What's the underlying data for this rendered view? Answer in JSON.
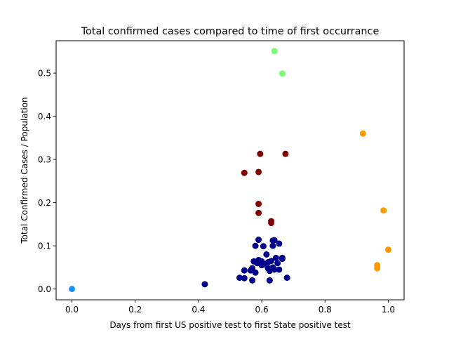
{
  "chart_data": {
    "type": "scatter",
    "title": "Total confirmed cases compared to time of first occurrance",
    "xlabel": "Days from first US positive test to first State positive test",
    "ylabel": "Total Confirmed Cases / Population",
    "xlim": [
      -0.05,
      1.05
    ],
    "ylim": [
      -0.025,
      0.575
    ],
    "x_ticks": [
      0.0,
      0.2,
      0.4,
      0.6,
      0.8,
      1.0
    ],
    "x_tick_labels": [
      "0.0",
      "0.2",
      "0.4",
      "0.6",
      "0.8",
      "1.0"
    ],
    "y_ticks": [
      0.0,
      0.1,
      0.2,
      0.3,
      0.4,
      0.5
    ],
    "y_tick_labels": [
      "0.0",
      "0.1",
      "0.2",
      "0.3",
      "0.4",
      "0.5"
    ],
    "grid": false,
    "legend": "none",
    "clusters": [
      {
        "color": "#1e90ff",
        "points": [
          [
            0.0,
            0.0
          ]
        ]
      },
      {
        "color": "#00008b",
        "points": [
          [
            0.42,
            0.011
          ],
          [
            0.53,
            0.026
          ],
          [
            0.545,
            0.025
          ],
          [
            0.545,
            0.043
          ],
          [
            0.57,
            0.02
          ],
          [
            0.57,
            0.048
          ],
          [
            0.575,
            0.064
          ],
          [
            0.58,
            0.038
          ],
          [
            0.58,
            0.1
          ],
          [
            0.585,
            0.06
          ],
          [
            0.59,
            0.067
          ],
          [
            0.59,
            0.114
          ],
          [
            0.6,
            0.055
          ],
          [
            0.6,
            0.064
          ],
          [
            0.605,
            0.099
          ],
          [
            0.61,
            0.057
          ],
          [
            0.615,
            0.08
          ],
          [
            0.62,
            0.062
          ],
          [
            0.62,
            0.048
          ],
          [
            0.625,
            0.042
          ],
          [
            0.625,
            0.02
          ],
          [
            0.63,
            0.065
          ],
          [
            0.635,
            0.05
          ],
          [
            0.635,
            0.112
          ],
          [
            0.635,
            0.1
          ],
          [
            0.64,
            0.113
          ],
          [
            0.64,
            0.045
          ],
          [
            0.645,
            0.072
          ],
          [
            0.65,
            0.06
          ],
          [
            0.655,
            0.045
          ],
          [
            0.655,
            0.105
          ],
          [
            0.665,
            0.072
          ],
          [
            0.665,
            0.07
          ],
          [
            0.68,
            0.026
          ],
          [
            0.565,
            0.043
          ],
          [
            0.6,
            0.058
          ]
        ]
      },
      {
        "color": "#800000",
        "points": [
          [
            0.545,
            0.269
          ],
          [
            0.59,
            0.271
          ],
          [
            0.59,
            0.197
          ],
          [
            0.59,
            0.176
          ],
          [
            0.595,
            0.313
          ],
          [
            0.63,
            0.157
          ],
          [
            0.63,
            0.153
          ],
          [
            0.675,
            0.313
          ]
        ]
      },
      {
        "color": "#7cfc74",
        "points": [
          [
            0.64,
            0.551
          ],
          [
            0.665,
            0.499
          ]
        ]
      },
      {
        "color": "#ff9900",
        "points": [
          [
            0.92,
            0.36
          ],
          [
            0.985,
            0.182
          ],
          [
            1.0,
            0.091
          ],
          [
            0.965,
            0.055
          ],
          [
            0.965,
            0.048
          ]
        ]
      }
    ]
  }
}
